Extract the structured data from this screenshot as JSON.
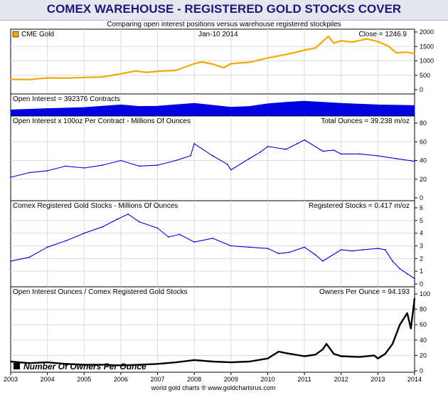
{
  "header": {
    "title": "COMEX WAREHOUSE - REGISTERED GOLD STOCKS COVER",
    "subtitle": "Comparing open interest positions versus warehouse registered stockpiles"
  },
  "footer": {
    "credit": "world gold charts ® www.goldchartsrus.com"
  },
  "colors": {
    "gold": "#f2a900",
    "blue": "#0000e0",
    "black": "#000000",
    "grid": "#dcdcdc",
    "title_bg": "#e6e6ee",
    "title_text": "#1a1a7a"
  },
  "chart_data": [
    {
      "type": "line",
      "panel": "gold-price",
      "legend": "CME Gold",
      "date_label": "Jan-10  2014",
      "readout": "Close = 1246.9",
      "ylim": [
        0,
        2000
      ],
      "yticks": [
        "2000",
        "1500",
        "1000",
        "500",
        "0"
      ],
      "yvalues": [
        2000,
        1500,
        1000,
        500,
        0
      ],
      "series": [
        {
          "name": "CME Gold",
          "x": [
            2003.0,
            2003.5,
            2004.0,
            2004.5,
            2005.0,
            2005.5,
            2006.0,
            2006.4,
            2006.7,
            2007.0,
            2007.5,
            2008.0,
            2008.2,
            2008.5,
            2008.8,
            2009.0,
            2009.5,
            2010.0,
            2010.5,
            2011.0,
            2011.3,
            2011.65,
            2011.8,
            2012.0,
            2012.3,
            2012.7,
            2013.0,
            2013.3,
            2013.5,
            2013.8,
            2014.0
          ],
          "y": [
            360,
            350,
            410,
            400,
            425,
            440,
            550,
            650,
            600,
            640,
            670,
            900,
            960,
            890,
            760,
            900,
            950,
            1100,
            1220,
            1370,
            1450,
            1850,
            1620,
            1700,
            1650,
            1760,
            1670,
            1500,
            1280,
            1300,
            1245
          ]
        }
      ]
    },
    {
      "type": "area",
      "panel": "open-interest",
      "label": "Open Interest = 392376 Contracts",
      "ylim": [
        0,
        700000
      ],
      "series": [
        {
          "name": "Open Interest",
          "x": [
            2003.0,
            2004.0,
            2005.0,
            2006.0,
            2006.5,
            2007.0,
            2008.0,
            2009.0,
            2009.5,
            2010.0,
            2010.5,
            2011.0,
            2011.5,
            2012.0,
            2013.0,
            2014.0
          ],
          "y": [
            230000,
            280000,
            320000,
            420000,
            360000,
            370000,
            480000,
            330000,
            360000,
            460000,
            520000,
            560000,
            520000,
            480000,
            420000,
            392376
          ]
        }
      ]
    },
    {
      "type": "line",
      "panel": "total-ounces",
      "label": "Open Interest x 100oz Per Contract  - Millions Of Ounces",
      "readout": "Total Ounces = 39.238 m/oz",
      "ylim": [
        0,
        80
      ],
      "yticks": [
        "80",
        "60",
        "40",
        "20",
        "0"
      ],
      "yvalues": [
        80,
        60,
        40,
        20,
        0
      ],
      "series": [
        {
          "name": "Total Ounces",
          "x": [
            2003.0,
            2003.5,
            2004.0,
            2004.5,
            2005.0,
            2005.5,
            2006.0,
            2006.5,
            2007.0,
            2007.5,
            2007.9,
            2008.0,
            2008.5,
            2008.9,
            2009.0,
            2009.5,
            2009.8,
            2010.0,
            2010.5,
            2010.8,
            2011.0,
            2011.5,
            2011.8,
            2012.0,
            2012.5,
            2013.0,
            2013.5,
            2014.0
          ],
          "y": [
            22,
            27,
            29,
            34,
            32,
            35,
            40,
            34,
            35,
            40,
            45,
            58,
            45,
            36,
            30,
            42,
            49,
            55,
            52,
            58,
            62,
            50,
            51,
            47,
            47,
            45,
            42,
            39.2
          ]
        }
      ]
    },
    {
      "type": "line",
      "panel": "registered-stocks",
      "label": "Comex Registered Gold Stocks  - Millions Of Ounces",
      "readout": "Registered Stocks = 0.417 m/oz",
      "ylim": [
        0,
        6
      ],
      "yticks": [
        "6",
        "5",
        "4",
        "3",
        "2",
        "1",
        "0"
      ],
      "yvalues": [
        6,
        5,
        4,
        3,
        2,
        1,
        0
      ],
      "series": [
        {
          "name": "Registered Stocks",
          "x": [
            2003.0,
            2003.5,
            2004.0,
            2004.5,
            2005.0,
            2005.5,
            2005.9,
            2006.2,
            2006.5,
            2007.0,
            2007.3,
            2007.6,
            2008.0,
            2008.5,
            2009.0,
            2009.5,
            2010.0,
            2010.3,
            2010.6,
            2011.0,
            2011.3,
            2011.5,
            2012.0,
            2012.3,
            2012.6,
            2013.0,
            2013.2,
            2013.4,
            2013.6,
            2013.8,
            2014.0
          ],
          "y": [
            1.8,
            2.1,
            2.9,
            3.4,
            4.0,
            4.5,
            5.1,
            5.5,
            4.9,
            4.4,
            3.7,
            3.9,
            3.3,
            3.6,
            3.0,
            2.9,
            2.8,
            2.4,
            2.5,
            2.9,
            2.3,
            1.8,
            2.7,
            2.6,
            2.7,
            2.8,
            2.7,
            1.8,
            1.2,
            0.8,
            0.42
          ]
        }
      ]
    },
    {
      "type": "line",
      "panel": "owners-per-ounce",
      "label": "Open Interest Ounces / Comex Registered Gold Stocks",
      "readout": "Owners Per Ounce = 94.193",
      "legend": "Number Of Owners Per Ounce",
      "ylim": [
        0,
        100
      ],
      "yticks": [
        "100",
        "80",
        "60",
        "40",
        "20",
        "0"
      ],
      "yvalues": [
        100,
        80,
        60,
        40,
        20,
        0
      ],
      "series": [
        {
          "name": "Number Of Owners Per Ounce",
          "x": [
            2003.0,
            2003.5,
            2004.0,
            2004.5,
            2005.0,
            2005.5,
            2006.0,
            2006.5,
            2007.0,
            2007.5,
            2008.0,
            2008.5,
            2009.0,
            2009.5,
            2010.0,
            2010.3,
            2010.5,
            2011.0,
            2011.3,
            2011.5,
            2011.6,
            2011.8,
            2012.0,
            2012.5,
            2012.9,
            2013.0,
            2013.2,
            2013.4,
            2013.6,
            2013.8,
            2013.9,
            2014.0
          ],
          "y": [
            12,
            10,
            11,
            9,
            8,
            8,
            7,
            8,
            9,
            11,
            14,
            12,
            11,
            12,
            16,
            25,
            23,
            19,
            21,
            28,
            35,
            22,
            19,
            18,
            20,
            16,
            22,
            35,
            60,
            75,
            55,
            94.2
          ]
        }
      ]
    }
  ],
  "x_axis": {
    "labels": [
      "2003",
      "2004",
      "2005",
      "2006",
      "2007",
      "2008",
      "2009",
      "2010",
      "2011",
      "2012",
      "2013",
      "2014"
    ],
    "values": [
      2003,
      2004,
      2005,
      2006,
      2007,
      2008,
      2009,
      2010,
      2011,
      2012,
      2013,
      2014
    ]
  }
}
